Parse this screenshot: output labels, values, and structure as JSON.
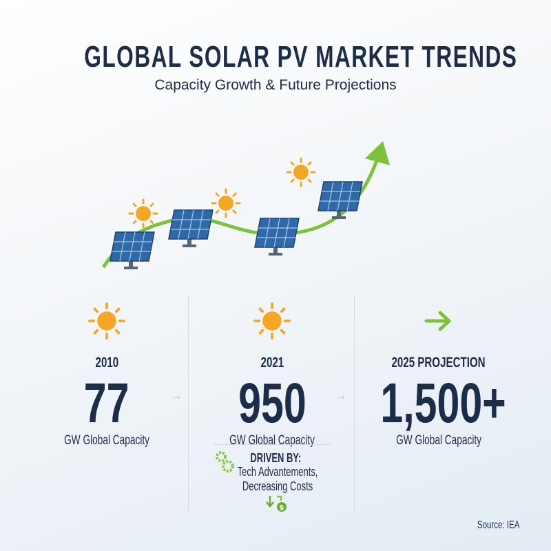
{
  "title": "GLOBAL SOLAR PV MARKET TRENDS",
  "subtitle": "Capacity Growth & Future Projections",
  "colors": {
    "navy": "#1c2d4a",
    "green": "#7cc33a",
    "sun": "#f5a623",
    "panel": "#2f6aa8"
  },
  "columns": [
    {
      "icon": "sun-icon",
      "year": "2010",
      "value": "77",
      "caption": "GW Global Capacity"
    },
    {
      "icon": "sun-icon",
      "year": "2021",
      "value": "950",
      "caption": "GW Global Capacity"
    },
    {
      "icon": "arrow-right-icon",
      "year": "2025 PROJECTION",
      "value": "1,500+",
      "caption": "GW Global Capacity"
    }
  ],
  "drivers": {
    "heading": "DRIVEN BY:",
    "line1": "Tech Advantements,",
    "line2": "Decreasing Costs"
  },
  "source": "Source: IEA"
}
